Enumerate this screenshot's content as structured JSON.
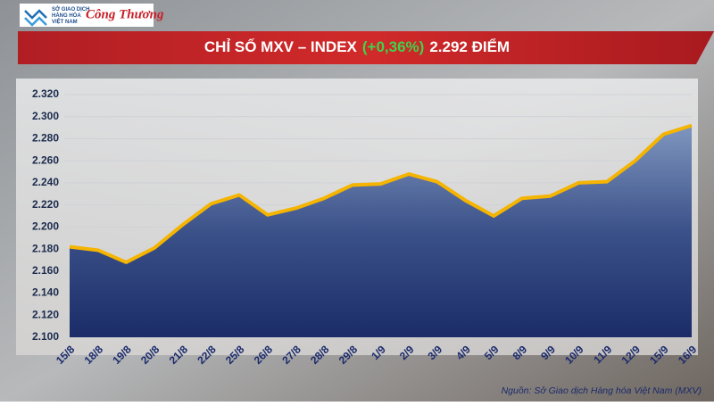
{
  "logo": {
    "lines": [
      "SỞ GIAO DỊCH",
      "HÀNG HÓA",
      "VIỆT NAM"
    ],
    "partner": "Công Thương"
  },
  "chart_data": {
    "type": "area",
    "title": {
      "prefix": "CHỈ SỐ MXV – INDEX",
      "change": "(+0,36%)",
      "suffix": "2.292 ĐIỂM"
    },
    "categories": [
      "15/8",
      "18/8",
      "19/8",
      "20/8",
      "21/8",
      "22/8",
      "25/8",
      "26/8",
      "27/8",
      "28/8",
      "29/8",
      "1/9",
      "2/9",
      "3/9",
      "4/9",
      "5/9",
      "8/9",
      "9/9",
      "10/9",
      "11/9",
      "12/9",
      "15/9",
      "16/9"
    ],
    "values": [
      2182,
      2179,
      2168,
      2181,
      2202,
      2221,
      2229,
      2211,
      2217,
      2226,
      2238,
      2239,
      2248,
      2241,
      2224,
      2210,
      2226,
      2228,
      2240,
      2241,
      2260,
      2284,
      2292
    ],
    "color": "#f5b400",
    "ylim": [
      2100,
      2320
    ],
    "yticks": [
      {
        "value": 2100,
        "label": "2.100"
      },
      {
        "value": 2120,
        "label": "2.120"
      },
      {
        "value": 2140,
        "label": "2.140"
      },
      {
        "value": 2160,
        "label": "2.160"
      },
      {
        "value": 2180,
        "label": "2.180"
      },
      {
        "value": 2200,
        "label": "2.200"
      },
      {
        "value": 2220,
        "label": "2.220"
      },
      {
        "value": 2240,
        "label": "2.240"
      },
      {
        "value": 2260,
        "label": "2.260"
      },
      {
        "value": 2280,
        "label": "2.280"
      },
      {
        "value": 2300,
        "label": "2.300"
      },
      {
        "value": 2320,
        "label": "2.320"
      }
    ],
    "grid": true,
    "source": "Nguồn: Sở Giao dịch Hàng hóa Việt Nam (MXV)"
  }
}
